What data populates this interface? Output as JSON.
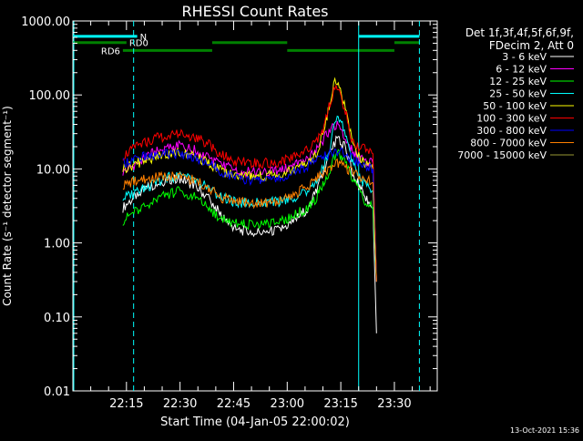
{
  "chart_data": {
    "type": "line",
    "title": "RHESSI Count Rates",
    "xlabel": "Start Time (04-Jan-05 22:00:02)",
    "ylabel": "Count Rate (s⁻¹ detector segment⁻¹)",
    "y_scale": "log",
    "ylim": [
      0.01,
      1000
    ],
    "x_ticks": [
      "22:15",
      "22:30",
      "22:45",
      "23:00",
      "23:15",
      "23:30"
    ],
    "y_ticks": [
      "0.01",
      "0.10",
      "1.00",
      "10.00",
      "100.00",
      "1000.00"
    ],
    "xlim": [
      "22:00",
      "23:42"
    ],
    "legend_placement": "right",
    "legend_header": [
      "Det 1f,3f,4f,5f,6f,9f,",
      "FDecim 2, Att 0"
    ],
    "footer": "13-Oct-2021 15:36",
    "time_points": [
      "22:14",
      "22:18",
      "22:22",
      "22:26",
      "22:30",
      "22:34",
      "22:38",
      "22:42",
      "22:46",
      "22:50",
      "22:54",
      "22:58",
      "23:02",
      "23:06",
      "23:08",
      "23:10",
      "23:12",
      "23:13",
      "23:14",
      "23:16",
      "23:18",
      "23:20",
      "23:22",
      "23:24",
      "23:25"
    ],
    "series": [
      {
        "name": "3 - 6 keV",
        "color": "#ffffff",
        "values": [
          3.0,
          4.5,
          6.0,
          7.0,
          7.5,
          6.0,
          4.0,
          2.2,
          1.5,
          1.4,
          1.4,
          1.5,
          2.0,
          3.0,
          5.0,
          9.0,
          16.0,
          22.0,
          25.0,
          20.0,
          10.0,
          6.0,
          4.0,
          3.0,
          0.06
        ]
      },
      {
        "name": "6 - 12 keV",
        "color": "#ff00ff",
        "values": [
          9.0,
          12.0,
          16.0,
          19.0,
          21.0,
          18.0,
          14.0,
          11.0,
          9.5,
          9.0,
          9.0,
          9.5,
          11.0,
          14.0,
          17.0,
          24.0,
          35.0,
          40.0,
          38.0,
          28.0,
          18.0,
          14.0,
          13.0,
          12.0,
          0.3
        ]
      },
      {
        "name": "12 - 25 keV",
        "color": "#00ff00",
        "values": [
          2.0,
          2.8,
          3.5,
          4.5,
          5.0,
          4.2,
          3.0,
          2.0,
          1.8,
          1.8,
          1.8,
          1.9,
          2.4,
          3.0,
          4.0,
          6.0,
          10.0,
          14.0,
          16.0,
          14.0,
          8.0,
          5.0,
          3.5,
          3.0,
          0.3
        ]
      },
      {
        "name": "25 - 50 keV",
        "color": "#00ffff",
        "values": [
          4.0,
          5.0,
          6.0,
          7.5,
          8.0,
          7.0,
          5.5,
          4.0,
          3.5,
          3.5,
          3.5,
          3.6,
          4.0,
          5.0,
          6.5,
          10.0,
          20.0,
          40.0,
          55.0,
          35.0,
          14.0,
          8.0,
          6.0,
          5.0,
          0.3
        ]
      },
      {
        "name": "50 - 100 keV",
        "color": "#ffff00",
        "values": [
          10.0,
          12.0,
          14.0,
          16.0,
          17.0,
          15.0,
          12.0,
          9.0,
          8.0,
          8.0,
          8.0,
          8.5,
          10.0,
          12.0,
          15.0,
          30.0,
          80.0,
          140.0,
          150.0,
          80.0,
          25.0,
          15.0,
          12.0,
          10.0,
          0.3
        ]
      },
      {
        "name": "100 - 300 keV",
        "color": "#ff0000",
        "values": [
          15.0,
          20.0,
          25.0,
          28.0,
          30.0,
          27.0,
          22.0,
          15.0,
          12.5,
          12.0,
          12.0,
          12.5,
          15.0,
          18.0,
          22.0,
          35.0,
          80.0,
          110.0,
          120.0,
          70.0,
          25.0,
          20.0,
          18.0,
          16.0,
          0.3
        ]
      },
      {
        "name": "300 - 800 keV",
        "color": "#0000ff",
        "values": [
          12.0,
          14.0,
          15.0,
          16.0,
          16.0,
          14.5,
          12.0,
          9.0,
          7.5,
          7.0,
          7.0,
          7.5,
          9.0,
          11.0,
          13.0,
          15.0,
          16.0,
          17.0,
          17.5,
          16.0,
          14.0,
          12.0,
          11.0,
          10.0,
          0.3
        ]
      },
      {
        "name": "800 - 7000 keV",
        "color": "#ff8000",
        "values": [
          6.0,
          7.0,
          7.5,
          8.0,
          8.0,
          7.0,
          5.5,
          4.0,
          3.6,
          3.5,
          3.5,
          3.7,
          4.5,
          6.0,
          7.5,
          9.0,
          10.5,
          11.5,
          12.0,
          10.5,
          9.0,
          8.0,
          7.0,
          6.5,
          0.3
        ]
      },
      {
        "name": "7000 - 15000 keV",
        "color": "#999933",
        "values": []
      }
    ],
    "segment_bars": [
      {
        "label": "N",
        "color": "#00ffff",
        "level": 620,
        "start": "22:00",
        "end": "22:18"
      },
      {
        "label": "",
        "color": "#00ffff",
        "level": 620,
        "start": "23:20",
        "end": "23:37"
      },
      {
        "label": "RD0",
        "color": "#008000",
        "level": 510,
        "start": "22:00",
        "end": "22:15"
      },
      {
        "label": "",
        "color": "#008000",
        "level": 510,
        "start": "22:39",
        "end": "23:00"
      },
      {
        "label": "",
        "color": "#008000",
        "level": 510,
        "start": "23:30",
        "end": "23:37"
      },
      {
        "label": "RD6",
        "color": "#008000",
        "level": 400,
        "start": "22:14",
        "end": "22:39"
      },
      {
        "label": "",
        "color": "#008000",
        "level": 400,
        "start": "23:00",
        "end": "23:30"
      }
    ],
    "vertical_markers": [
      {
        "time": "22:17",
        "style": "dashed"
      },
      {
        "time": "23:20",
        "style": "solid"
      },
      {
        "time": "23:37",
        "style": "dashed"
      }
    ]
  }
}
